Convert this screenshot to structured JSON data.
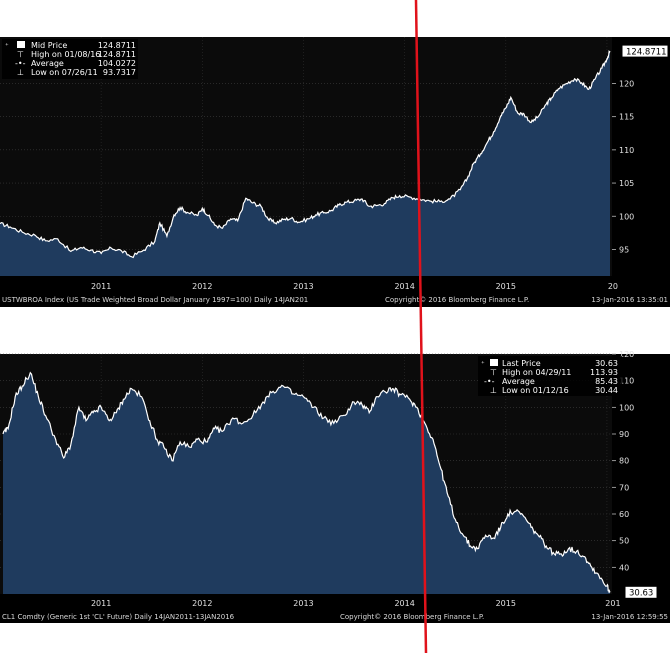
{
  "chart_data": [
    {
      "type": "area",
      "title": "",
      "footer_left": "USTWBROA Index (US Trade Weighted Broad Dollar January 1997=100)  Daily 14JAN201",
      "footer_copyright": "Copyright© 2016 Bloomberg Finance L.P.",
      "footer_date": "13-Jan-2016 13:35:01",
      "x_ticks": [
        "2011",
        "2012",
        "2013",
        "2014",
        "2015",
        "20"
      ],
      "y_ticks": [
        95,
        100,
        105,
        110,
        115,
        120
      ],
      "ylim": [
        91,
        127
      ],
      "last_value_label": "124.8711",
      "legend": {
        "placement": "top-left",
        "rows": [
          {
            "label": "Mid Price",
            "value": "124.8711"
          },
          {
            "label": "High on 01/08/16",
            "value": "124.8711"
          },
          {
            "label": "Average",
            "value": "104.0272"
          },
          {
            "label": "Low on 07/26/11",
            "value": "93.7317"
          }
        ]
      },
      "series": [
        {
          "x": [
            2010.0,
            2010.1,
            2010.22,
            2010.35,
            2010.45,
            2010.57,
            2010.7,
            2010.8,
            2010.9,
            2011.0,
            2011.1,
            2011.2,
            2011.3,
            2011.42,
            2011.53,
            2011.58,
            2011.65,
            2011.72,
            2011.78,
            2011.85,
            2011.95,
            2012.0,
            2012.06,
            2012.12,
            2012.2,
            2012.28,
            2012.35,
            2012.43,
            2012.5,
            2012.58,
            2012.65,
            2012.72,
            2012.8,
            2012.88,
            2012.95,
            2013.05,
            2013.12,
            2013.2,
            2013.28,
            2013.35,
            2013.42,
            2013.5,
            2013.58,
            2013.65,
            2013.72,
            2013.8,
            2013.88,
            2013.95,
            2014.05,
            2014.15,
            2014.25,
            2014.35,
            2014.45,
            2014.55,
            2014.62,
            2014.68,
            2014.75,
            2014.82,
            2014.88,
            2014.95,
            2015.0,
            2015.05,
            2015.12,
            2015.18,
            2015.25,
            2015.32,
            2015.4,
            2015.45,
            2015.52,
            2015.6,
            2015.68,
            2015.75,
            2015.82,
            2015.88,
            2015.95,
            2016.0,
            2016.03
          ],
          "values": [
            98.9,
            98.4,
            97.6,
            97.1,
            96.3,
            96.6,
            94.7,
            95.3,
            94.9,
            94.4,
            95.2,
            94.8,
            93.9,
            94.9,
            96.2,
            99.0,
            97.0,
            100.2,
            101.3,
            100.6,
            100.1,
            101.2,
            100.1,
            98.7,
            98.2,
            99.6,
            99.3,
            102.7,
            102.0,
            101.5,
            99.6,
            99.0,
            99.5,
            99.7,
            99.1,
            99.6,
            100.2,
            100.5,
            100.9,
            101.7,
            102.1,
            102.3,
            102.6,
            101.5,
            101.6,
            101.9,
            102.8,
            103.1,
            102.9,
            102.6,
            102.3,
            102.2,
            102.6,
            104.0,
            105.7,
            107.9,
            109.4,
            111.2,
            112.7,
            115.1,
            116.3,
            117.9,
            115.5,
            115.4,
            114.1,
            115.0,
            116.9,
            117.8,
            119.2,
            120.0,
            120.7,
            120.1,
            119.1,
            120.6,
            122.3,
            123.7,
            124.87
          ]
        }
      ]
    },
    {
      "type": "area",
      "title": "",
      "footer_left": "CL1 Comdty (Generic 1st 'CL' Future)  Daily 14JAN2011-13JAN2016",
      "footer_copyright": "Copyright© 2016 Bloomberg Finance L.P.",
      "footer_date": "13-Jan-2016 12:59:55",
      "x_ticks": [
        "2011",
        "2012",
        "2013",
        "2014",
        "2015",
        "201"
      ],
      "y_ticks": [
        40,
        50,
        60,
        70,
        80,
        90,
        100,
        110,
        120
      ],
      "ylim": [
        30,
        120
      ],
      "last_value_label": "30.63",
      "legend": {
        "placement": "top-right",
        "rows": [
          {
            "label": "Last Price",
            "value": "30.63"
          },
          {
            "label": "High on 04/29/11",
            "value": "113.93"
          },
          {
            "label": "Average",
            "value": "85.43"
          },
          {
            "label": "Low on 01/12/16",
            "value": "30.44"
          }
        ]
      },
      "series": [
        {
          "x": [
            2010.03,
            2010.08,
            2010.15,
            2010.22,
            2010.3,
            2010.38,
            2010.45,
            2010.55,
            2010.63,
            2010.7,
            2010.78,
            2010.85,
            2010.92,
            2011.0,
            2011.08,
            2011.15,
            2011.22,
            2011.3,
            2011.4,
            2011.48,
            2011.55,
            2011.62,
            2011.7,
            2011.78,
            2011.88,
            2011.95,
            2012.05,
            2012.12,
            2012.2,
            2012.3,
            2012.4,
            2012.5,
            2012.6,
            2012.7,
            2012.8,
            2012.9,
            2013.0,
            2013.1,
            2013.2,
            2013.3,
            2013.4,
            2013.5,
            2013.58,
            2013.65,
            2013.72,
            2013.8,
            2013.88,
            2013.95,
            2014.05,
            2014.12,
            2014.2,
            2014.28,
            2014.35,
            2014.42,
            2014.5,
            2014.58,
            2014.65,
            2014.72,
            2014.8,
            2014.88,
            2014.95,
            2015.02,
            2015.1,
            2015.18,
            2015.25,
            2015.32,
            2015.4,
            2015.48,
            2015.55,
            2015.62,
            2015.7,
            2015.78,
            2015.85,
            2015.92,
            2016.0,
            2016.03
          ],
          "values": [
            90,
            92,
            104,
            108,
            113,
            104,
            97,
            88,
            81,
            86,
            100,
            95,
            98,
            100,
            95,
            98,
            103,
            107,
            104,
            95,
            88,
            85,
            80,
            87,
            85,
            88,
            87,
            92,
            91,
            96,
            94,
            97,
            102,
            106,
            108,
            105,
            104,
            100,
            96,
            94,
            97,
            102,
            101,
            98,
            104,
            106,
            107,
            105,
            103,
            100,
            94,
            88,
            78,
            68,
            58,
            52,
            48,
            47,
            52,
            51,
            55,
            60,
            61,
            59,
            55,
            52,
            48,
            45,
            45,
            47,
            46,
            44,
            40,
            37,
            33,
            30.63
          ]
        }
      ]
    }
  ]
}
